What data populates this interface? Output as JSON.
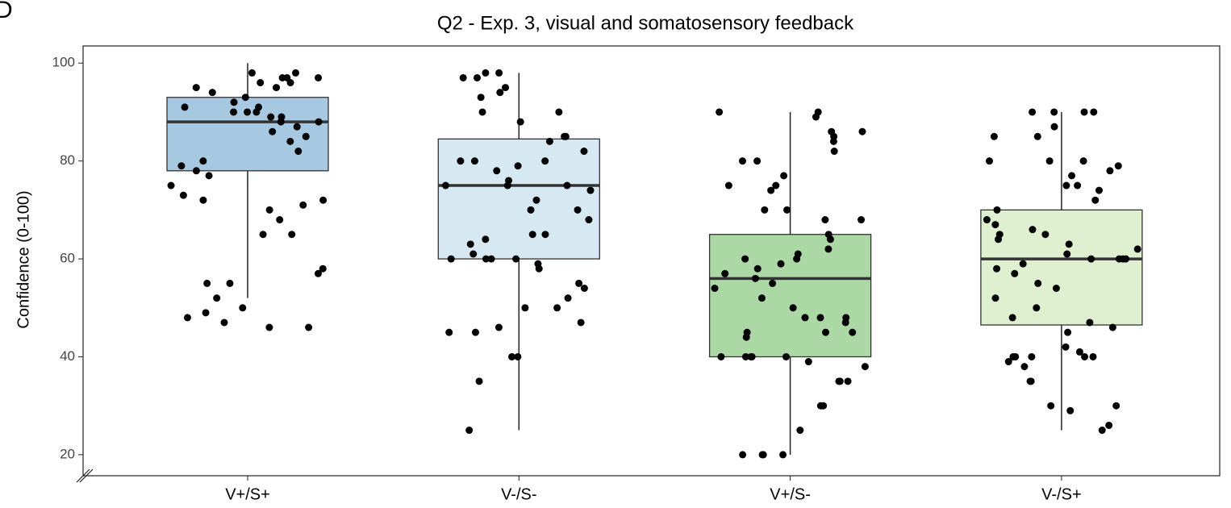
{
  "panel_label": "D",
  "chart_data": {
    "type": "box",
    "title": "Q2 - Exp. 3, visual and somatosensory feedback",
    "y_label": "Confidence (0-100)",
    "categories": [
      "V+/S+",
      "V-/S-",
      "V+/S-",
      "V-/S+"
    ],
    "ylim": [
      15.7,
      103.5
    ],
    "yticks": [
      20,
      40,
      60,
      80,
      100
    ],
    "grid": false,
    "boxes": [
      {
        "whisker_low": 52,
        "q1": 78,
        "median": 88,
        "q3": 93,
        "whisker_high": 100,
        "color": "#a6c8e0",
        "points": [
          97,
          98,
          96,
          95,
          97,
          98,
          96,
          95,
          94,
          93,
          92,
          91,
          90,
          90,
          89,
          88,
          88,
          87,
          86,
          85,
          84,
          82,
          80,
          79,
          78,
          77,
          75,
          73,
          72,
          72,
          71,
          70,
          68,
          65,
          65,
          58,
          57,
          55,
          55,
          52,
          50,
          49,
          48,
          47,
          46,
          46,
          97,
          91,
          90,
          89
        ]
      },
      {
        "whisker_low": 25,
        "q1": 60,
        "median": 75,
        "q3": 84.5,
        "whisker_high": 98,
        "color": "#d6e8f2",
        "points": [
          98,
          98,
          97,
          97,
          95,
          94,
          93,
          90,
          90,
          88,
          85,
          85,
          84,
          82,
          80,
          80,
          80,
          79,
          78,
          76,
          75,
          75,
          75,
          74,
          72,
          70,
          70,
          68,
          65,
          65,
          64,
          63,
          61,
          60,
          60,
          60,
          60,
          59,
          58,
          55,
          54,
          52,
          50,
          50,
          47,
          46,
          45,
          45,
          40,
          40,
          35,
          25
        ]
      },
      {
        "whisker_low": 20,
        "q1": 40,
        "median": 56,
        "q3": 65,
        "whisker_high": 90,
        "color": "#acd8a6",
        "points": [
          90,
          90,
          89,
          86,
          86,
          85,
          84,
          82,
          80,
          80,
          77,
          75,
          75,
          74,
          70,
          70,
          68,
          68,
          65,
          64,
          62,
          61,
          60,
          60,
          59,
          58,
          57,
          56,
          55,
          54,
          52,
          50,
          48,
          48,
          48,
          47,
          45,
          45,
          45,
          44,
          40,
          40,
          40,
          40,
          40,
          39,
          38,
          35,
          35,
          35,
          30,
          30,
          25,
          20,
          20,
          20,
          20
        ]
      },
      {
        "whisker_low": 25,
        "q1": 46.5,
        "median": 60,
        "q3": 70,
        "whisker_high": 90,
        "color": "#dff0d0",
        "points": [
          90,
          90,
          90,
          90,
          87,
          85,
          85,
          80,
          80,
          80,
          79,
          78,
          77,
          75,
          75,
          74,
          72,
          70,
          68,
          67,
          66,
          65,
          65,
          64,
          63,
          62,
          61,
          60,
          60,
          60,
          60,
          59,
          58,
          57,
          55,
          54,
          52,
          50,
          48,
          47,
          46,
          45,
          42,
          41,
          40,
          40,
          40,
          40,
          40,
          39,
          38,
          35,
          35,
          30,
          30,
          29,
          26,
          25
        ]
      }
    ]
  }
}
